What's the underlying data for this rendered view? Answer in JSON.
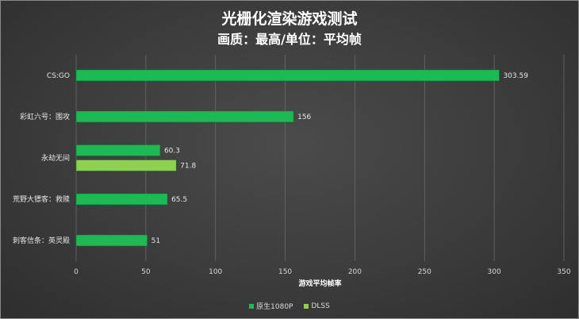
{
  "title": "光栅化渲染游戏测试",
  "subtitle": "画质：最高/单位：平均帧",
  "chart_data": {
    "type": "bar",
    "orientation": "horizontal",
    "xlabel": "游戏平均帧率",
    "xlim": [
      0,
      350
    ],
    "xticks": [
      0,
      50,
      100,
      150,
      200,
      250,
      300,
      350
    ],
    "grid": true,
    "legend_position": "bottom",
    "groups": [
      {
        "label": "CS:GO",
        "bars": [
          {
            "series": 0,
            "value": 303.59,
            "label": "303.59"
          }
        ]
      },
      {
        "label": "彩虹六号：围攻",
        "bars": [
          {
            "series": 0,
            "value": 156,
            "label": "156"
          }
        ]
      },
      {
        "label": "永劫无间",
        "bars": [
          {
            "series": 0,
            "value": 60.3,
            "label": "60.3"
          },
          {
            "series": 1,
            "value": 71.8,
            "label": "71.8"
          }
        ]
      },
      {
        "label": "荒野大镖客：救赎",
        "bars": [
          {
            "series": 0,
            "value": 65.5,
            "label": "65.5"
          }
        ]
      },
      {
        "label": "刺客信条：英灵殿",
        "bars": [
          {
            "series": 0,
            "value": 51,
            "label": "51"
          }
        ]
      }
    ],
    "series": [
      {
        "name": "原生1080P",
        "color": "#1db954"
      },
      {
        "name": "DLSS",
        "color": "#8fd14f"
      }
    ]
  }
}
